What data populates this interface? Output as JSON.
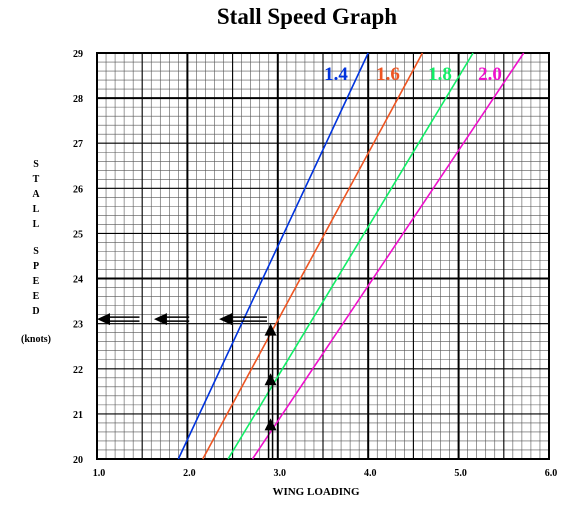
{
  "chart_data": {
    "type": "line",
    "title": "Stall Speed Graph",
    "xlabel": "WING LOADING",
    "ylabel_letters": [
      "S",
      "T",
      "A",
      "L",
      "L",
      "",
      "S",
      "P",
      "E",
      "E",
      "D"
    ],
    "ylabel_unit": "(knots)",
    "xlim": [
      1.0,
      6.0
    ],
    "ylim": [
      20,
      29
    ],
    "x_ticks": [
      "1.0",
      "2.0",
      "3.0",
      "4.0",
      "5.0",
      "6.0"
    ],
    "y_ticks": [
      "20",
      "21",
      "22",
      "23",
      "24",
      "25",
      "26",
      "27",
      "28",
      "29"
    ],
    "grid": true,
    "series": [
      {
        "name": "1.4",
        "color": "#0033dd",
        "points": [
          [
            1.9,
            20
          ],
          [
            4.0,
            29
          ]
        ]
      },
      {
        "name": "1.6",
        "color": "#ee5522",
        "points": [
          [
            2.17,
            20
          ],
          [
            4.6,
            29
          ]
        ]
      },
      {
        "name": "1.8",
        "color": "#11ee66",
        "points": [
          [
            2.45,
            20
          ],
          [
            5.16,
            29
          ]
        ]
      },
      {
        "name": "2.0",
        "color": "#ee11cc",
        "points": [
          [
            2.72,
            20
          ],
          [
            5.72,
            29
          ]
        ]
      }
    ],
    "arrows": {
      "vertical_x": 2.92,
      "vertical_tips": [
        20.9,
        21.9,
        23.0
      ],
      "horizontal_y": 23.1,
      "horizontal_tips": [
        1.0,
        1.63,
        2.35
      ]
    }
  }
}
